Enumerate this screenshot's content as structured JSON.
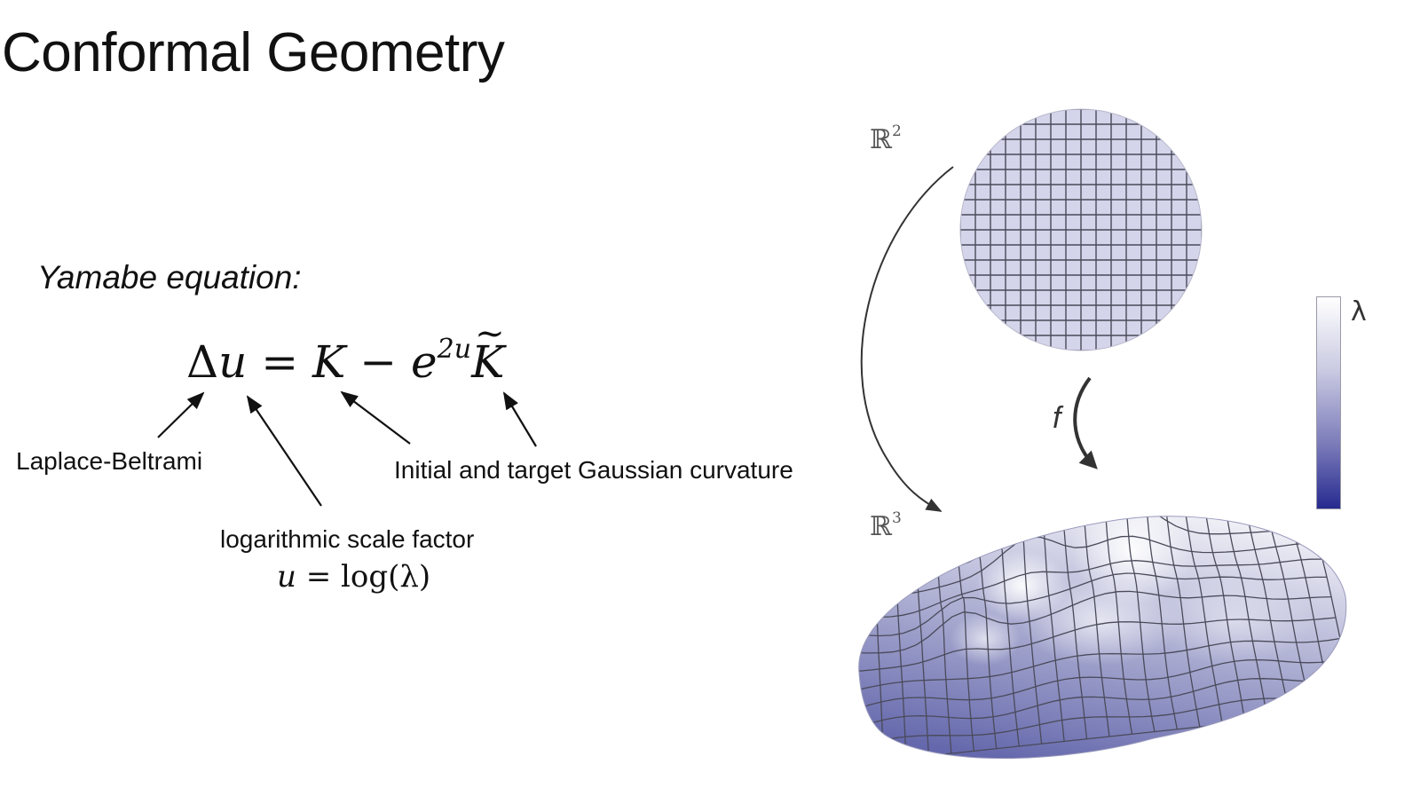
{
  "slide": {
    "title": "Conformal Geometry"
  },
  "equation": {
    "heading": "Yamabe equation:",
    "delta": "Δ",
    "u": "u",
    "equals": " = ",
    "K": "K",
    "minus": " − ",
    "e": "e",
    "exponent": "2u",
    "Ktilde": "K",
    "tilde": "~"
  },
  "annotations": {
    "laplace_beltrami": "Laplace-Beltrami",
    "log_scale": "logarithmic scale factor",
    "curvature": "Initial and target Gaussian curvature",
    "u_def_lhs": "u",
    "u_def_rhs": " = log(λ)"
  },
  "figure": {
    "domain_label_base": "ℝ",
    "domain_label_exp": "2",
    "target_label_base": "ℝ",
    "target_label_exp": "3",
    "map_label": "f",
    "colorbar_label": "λ",
    "colors": {
      "disk_fill": "#d4d4ea",
      "grid_line": "#4a4a5a",
      "surface_low": "#4b4f9e",
      "surface_high": "#f3f3f8",
      "colorbar_top": "#ffffff",
      "colorbar_bottom": "#262a8f"
    }
  }
}
